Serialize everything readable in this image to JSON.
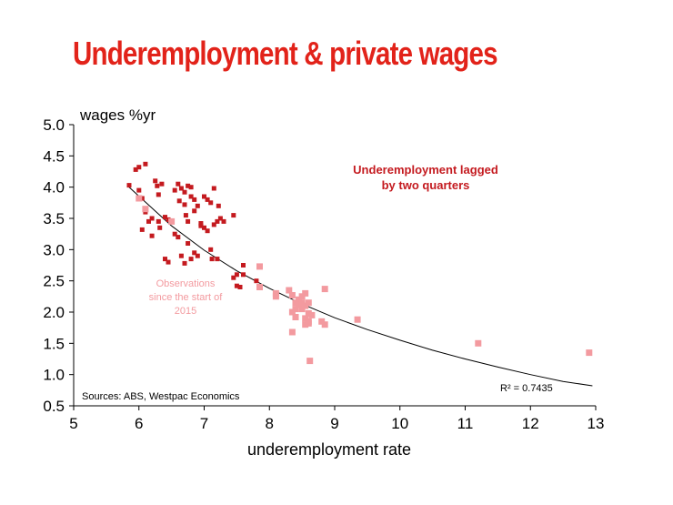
{
  "title": "Underemployment & private wages",
  "chart_data": {
    "type": "scatter",
    "title": "Underemployment & private wages",
    "xlabel": "underemployment rate",
    "ylabel": "wages %yr",
    "xlim": [
      5,
      13
    ],
    "ylim": [
      0.5,
      5.0
    ],
    "x_ticks": [
      "5",
      "6",
      "7",
      "8",
      "9",
      "10",
      "11",
      "12",
      "13"
    ],
    "y_ticks": [
      "0.5",
      "1.0",
      "1.5",
      "2.0",
      "2.5",
      "3.0",
      "3.5",
      "4.0",
      "4.5",
      "5.0"
    ],
    "grid": false,
    "annotations": {
      "main_line1": "Underemployment lagged",
      "main_line2": "by two quarters",
      "obs_line1": "Observations",
      "obs_line2": "since the start of",
      "obs_line3": "2015",
      "r2": "R² = 0.7435",
      "source": "Sources: ABS, Westpac Economics"
    },
    "colors": {
      "title": "#e2231a",
      "dark_points": "#c41a1f",
      "light_points": "#f39a9f",
      "trend": "#000000"
    },
    "trendline": {
      "type": "power",
      "x": [
        5.85,
        6.5,
        7,
        7.5,
        8,
        8.5,
        9,
        9.5,
        10,
        10.5,
        11,
        11.5,
        12,
        12.5,
        12.95
      ],
      "y": [
        4.0,
        3.38,
        2.99,
        2.66,
        2.38,
        2.13,
        1.91,
        1.72,
        1.55,
        1.39,
        1.25,
        1.12,
        1.0,
        0.89,
        0.82
      ]
    },
    "series": [
      {
        "values": [
          [
            5.85,
            4.03
          ],
          [
            5.95,
            4.28
          ],
          [
            6.0,
            4.32
          ],
          [
            6.1,
            4.37
          ],
          [
            6.0,
            3.95
          ],
          [
            6.05,
            3.82
          ],
          [
            6.1,
            3.6
          ],
          [
            6.2,
            3.5
          ],
          [
            6.15,
            3.45
          ],
          [
            6.05,
            3.32
          ],
          [
            6.2,
            3.22
          ],
          [
            6.25,
            4.1
          ],
          [
            6.28,
            4.02
          ],
          [
            6.3,
            3.88
          ],
          [
            6.35,
            4.05
          ],
          [
            6.3,
            3.45
          ],
          [
            6.32,
            3.35
          ],
          [
            6.4,
            3.52
          ],
          [
            6.45,
            3.48
          ],
          [
            6.4,
            2.85
          ],
          [
            6.45,
            2.8
          ],
          [
            6.55,
            3.25
          ],
          [
            6.6,
            3.2
          ],
          [
            6.55,
            3.95
          ],
          [
            6.6,
            4.05
          ],
          [
            6.65,
            3.98
          ],
          [
            6.7,
            3.92
          ],
          [
            6.75,
            4.02
          ],
          [
            6.8,
            4.0
          ],
          [
            6.62,
            3.78
          ],
          [
            6.7,
            3.72
          ],
          [
            6.8,
            3.85
          ],
          [
            6.85,
            3.8
          ],
          [
            6.72,
            3.55
          ],
          [
            6.75,
            3.45
          ],
          [
            6.85,
            3.62
          ],
          [
            6.9,
            3.7
          ],
          [
            6.95,
            3.42
          ],
          [
            6.75,
            3.1
          ],
          [
            6.8,
            2.85
          ],
          [
            6.65,
            2.9
          ],
          [
            6.7,
            2.78
          ],
          [
            6.85,
            2.95
          ],
          [
            6.9,
            2.9
          ],
          [
            6.95,
            3.38
          ],
          [
            7.0,
            3.35
          ],
          [
            7.0,
            3.85
          ],
          [
            7.05,
            3.8
          ],
          [
            7.1,
            3.75
          ],
          [
            7.05,
            3.3
          ],
          [
            7.1,
            3.0
          ],
          [
            7.12,
            2.85
          ],
          [
            7.15,
            3.4
          ],
          [
            7.2,
            3.45
          ],
          [
            7.15,
            3.98
          ],
          [
            7.22,
            3.7
          ],
          [
            7.25,
            3.5
          ],
          [
            7.3,
            3.45
          ],
          [
            7.2,
            2.85
          ],
          [
            7.45,
            3.55
          ],
          [
            7.45,
            2.55
          ],
          [
            7.5,
            2.6
          ],
          [
            7.5,
            2.42
          ],
          [
            7.55,
            2.4
          ],
          [
            7.6,
            2.75
          ],
          [
            7.6,
            2.6
          ],
          [
            7.8,
            2.5
          ]
        ]
      },
      {
        "values": [
          [
            6.0,
            3.82
          ],
          [
            6.1,
            3.65
          ],
          [
            6.5,
            3.45
          ],
          [
            7.85,
            2.73
          ],
          [
            7.85,
            2.4
          ],
          [
            8.1,
            2.3
          ],
          [
            8.1,
            2.25
          ],
          [
            8.3,
            2.35
          ],
          [
            8.35,
            2.27
          ],
          [
            8.4,
            2.15
          ],
          [
            8.45,
            2.2
          ],
          [
            8.5,
            2.25
          ],
          [
            8.55,
            2.3
          ],
          [
            8.4,
            2.05
          ],
          [
            8.45,
            2.12
          ],
          [
            8.5,
            2.15
          ],
          [
            8.55,
            2.1
          ],
          [
            8.6,
            2.15
          ],
          [
            8.35,
            2.0
          ],
          [
            8.4,
            1.92
          ],
          [
            8.5,
            2.05
          ],
          [
            8.6,
            1.98
          ],
          [
            8.65,
            1.95
          ],
          [
            8.55,
            1.9
          ],
          [
            8.6,
            1.85
          ],
          [
            8.55,
            1.8
          ],
          [
            8.6,
            1.82
          ],
          [
            8.35,
            1.68
          ],
          [
            8.62,
            1.22
          ],
          [
            8.8,
            1.85
          ],
          [
            8.85,
            1.8
          ],
          [
            8.85,
            2.37
          ],
          [
            9.35,
            1.88
          ],
          [
            11.2,
            1.5
          ],
          [
            12.9,
            1.35
          ]
        ]
      }
    ]
  }
}
